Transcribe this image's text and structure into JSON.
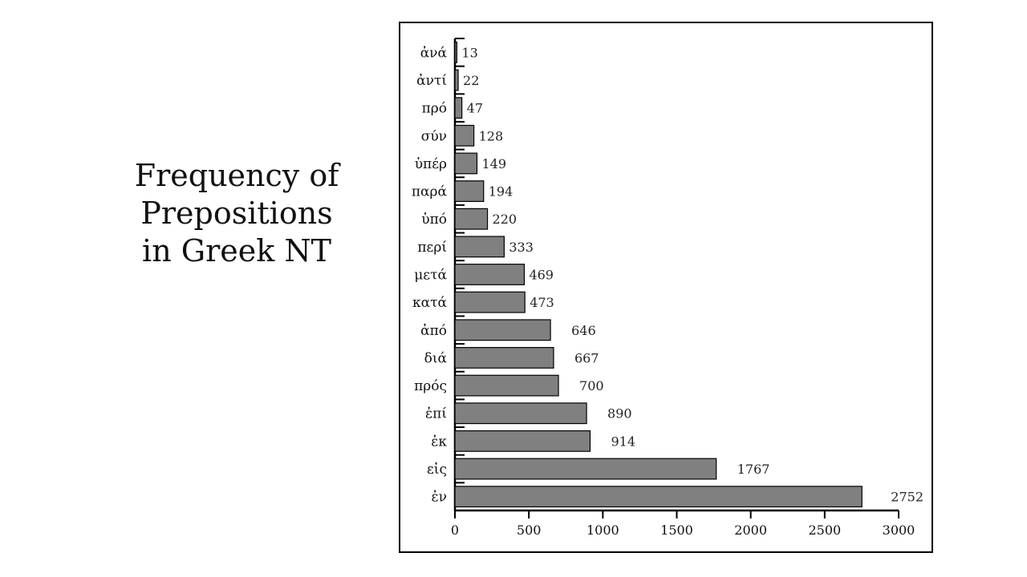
{
  "slide": {
    "title_lines": [
      "Frequency of",
      "Prepositions",
      "in Greek NT"
    ]
  },
  "chart_data": {
    "type": "bar",
    "orientation": "horizontal",
    "title": "",
    "xlabel": "",
    "ylabel": "",
    "categories": [
      "ἀνά",
      "ἀντί",
      "πρό",
      "σύν",
      "ὑπέρ",
      "παρά",
      "ὑπό",
      "περί",
      "μετά",
      "κατά",
      "ἀπό",
      "διά",
      "πρός",
      "ἐπί",
      "ἐκ",
      "εἰς",
      "ἐν"
    ],
    "values": [
      13,
      22,
      47,
      128,
      149,
      194,
      220,
      333,
      469,
      473,
      646,
      667,
      700,
      890,
      914,
      1767,
      2752
    ],
    "data_labels": [
      "13",
      "22",
      "47",
      "128",
      "149",
      "194",
      "220",
      "333",
      "469",
      "473",
      "646",
      "667",
      "700",
      "890",
      "914",
      "1767",
      "2752"
    ],
    "xlim": [
      0,
      3000
    ],
    "x_ticks": [
      0,
      500,
      1000,
      1500,
      2000,
      2500,
      3000
    ],
    "x_tick_labels": [
      "0",
      "500",
      "1000",
      "1500",
      "2000",
      "2500",
      "3000"
    ],
    "grid": false,
    "legend": "none",
    "bar_color": "#808080",
    "bar_edge_color": "#000000"
  }
}
